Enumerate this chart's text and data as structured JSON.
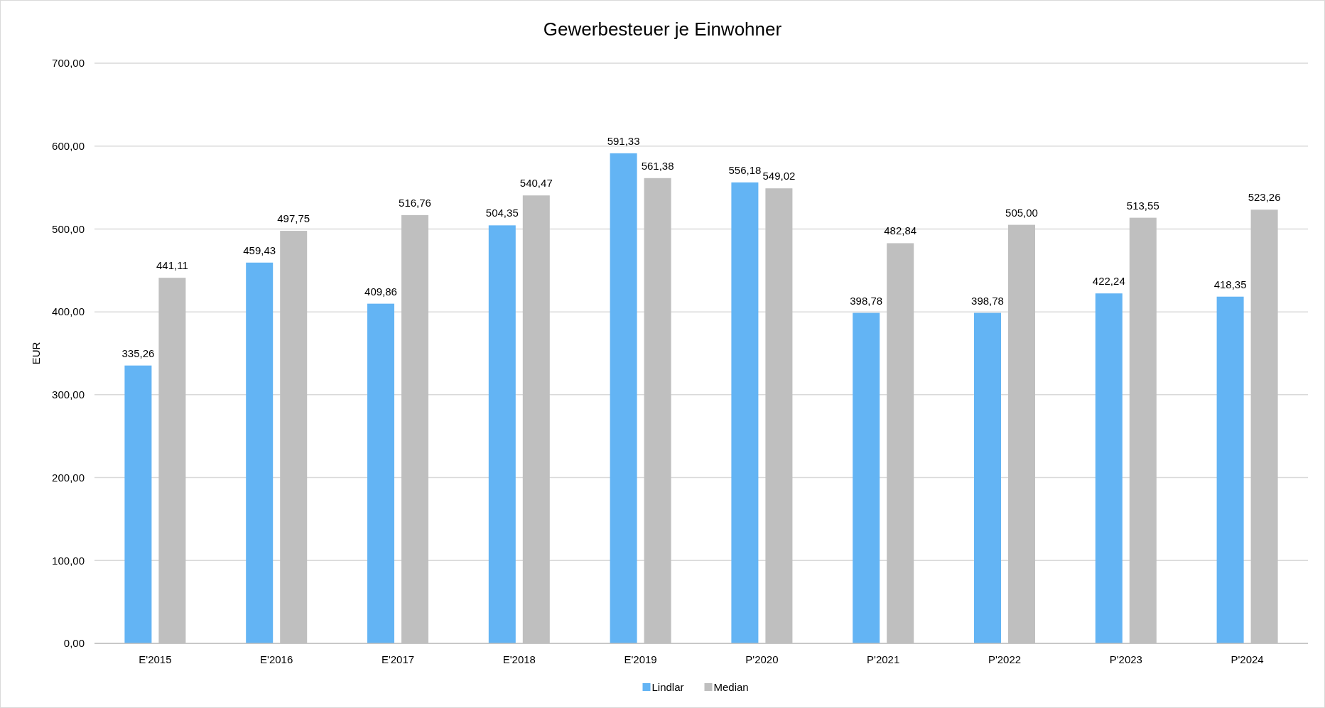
{
  "chart_data": {
    "type": "bar",
    "title": "Gewerbesteuer je Einwohner",
    "ylabel": "EUR",
    "categories": [
      "E'2015",
      "E'2016",
      "E'2017",
      "E'2018",
      "E'2019",
      "P'2020",
      "P'2021",
      "P'2022",
      "P'2023",
      "P'2024"
    ],
    "series": [
      {
        "name": "Lindlar",
        "color": "#63b4f4",
        "values": [
          335.26,
          459.43,
          409.86,
          504.35,
          591.33,
          556.18,
          398.78,
          398.78,
          422.24,
          418.35
        ],
        "value_labels": [
          "335,26",
          "459,43",
          "409,86",
          "504,35",
          "591,33",
          "556,18",
          "398,78",
          "398,78",
          "422,24",
          "418,35"
        ]
      },
      {
        "name": "Median",
        "color": "#bfbfbf",
        "values": [
          441.11,
          497.75,
          516.76,
          540.47,
          561.38,
          549.02,
          482.84,
          505.0,
          513.55,
          523.26
        ],
        "value_labels": [
          "441,11",
          "497,75",
          "516,76",
          "540,47",
          "561,38",
          "549,02",
          "482,84",
          "505,00",
          "513,55",
          "523,26"
        ]
      }
    ],
    "ylim": [
      0,
      700
    ],
    "yticks": [
      {
        "value": 0,
        "label": "0,00"
      },
      {
        "value": 100,
        "label": "100,00"
      },
      {
        "value": 200,
        "label": "200,00"
      },
      {
        "value": 300,
        "label": "300,00"
      },
      {
        "value": 400,
        "label": "400,00"
      },
      {
        "value": 500,
        "label": "500,00"
      },
      {
        "value": 600,
        "label": "600,00"
      },
      {
        "value": 700,
        "label": "700,00"
      }
    ],
    "grid": "y",
    "legend": "bottom"
  }
}
